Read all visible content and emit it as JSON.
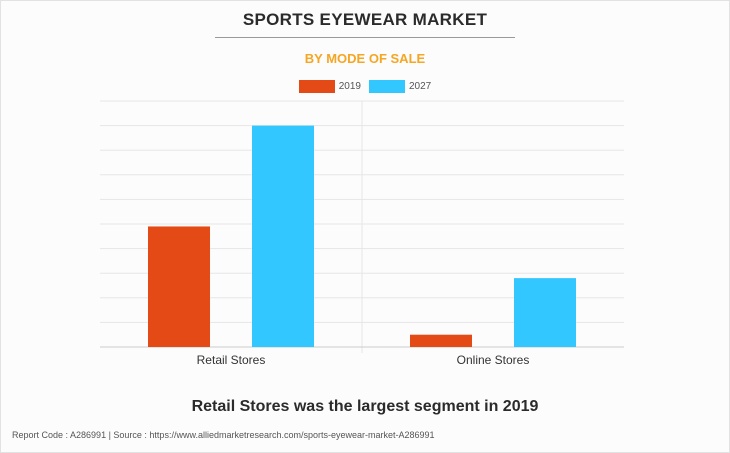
{
  "header": {
    "title": "SPORTS EYEWEAR MARKET",
    "subtitle": "BY MODE OF SALE"
  },
  "colors": {
    "subtitle": "#f5a623",
    "series_2019": "#e34a16",
    "series_2027": "#33c7ff",
    "grid": "#e6e6e6",
    "axis": "#cccccc"
  },
  "chart_data": {
    "type": "bar",
    "categories": [
      "Retail Stores",
      "Online Stores"
    ],
    "series": [
      {
        "name": "2019",
        "values": [
          4.9,
          0.5
        ]
      },
      {
        "name": "2027",
        "values": [
          9.0,
          2.8
        ]
      }
    ],
    "ylim": [
      0,
      10
    ],
    "grid": true,
    "legend_position": "top-center"
  },
  "caption": "Retail Stores was the largest segment in 2019",
  "footer": "Report Code : A286991  |  Source : https://www.alliedmarketresearch.com/sports-eyewear-market-A286991"
}
